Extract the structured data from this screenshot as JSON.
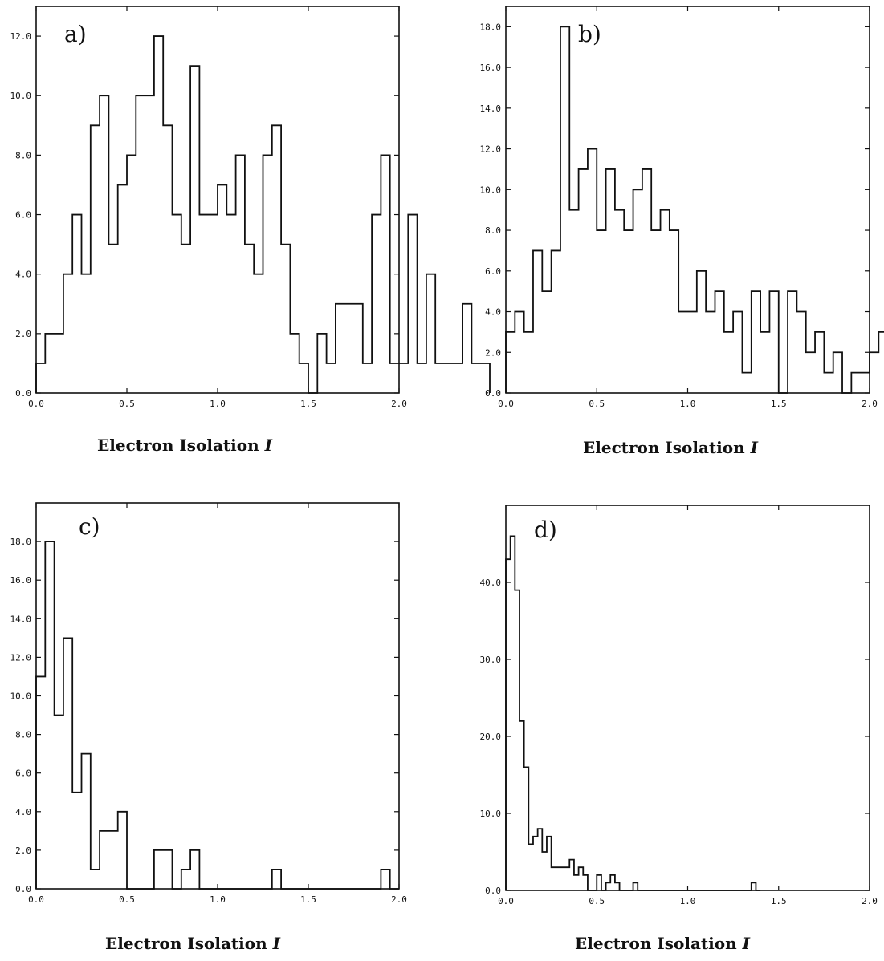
{
  "chart_data": [
    {
      "type": "histogram",
      "panel_label": "a)",
      "xlabel": "Electron Isolation",
      "xlabel_symbol": "I",
      "xlim": [
        0,
        2.0
      ],
      "ylim": [
        0,
        13.0
      ],
      "xticks": [
        "0.0",
        "0.5",
        "1.0",
        "1.5",
        "2.0"
      ],
      "yticks": [
        "0.0",
        "2.0",
        "4.0",
        "6.0",
        "8.0",
        "10.0",
        "12.0"
      ],
      "bin_width": 0.05,
      "values": [
        1,
        2,
        2,
        4,
        6,
        4,
        9,
        10,
        5,
        7,
        8,
        10,
        10,
        12,
        9,
        6,
        5,
        11,
        6,
        6,
        7,
        6,
        8,
        5,
        4,
        8,
        9,
        5,
        2,
        1,
        0,
        2,
        1,
        3,
        3,
        3,
        1,
        6,
        8,
        1,
        1,
        6,
        1,
        4,
        1,
        1,
        1,
        3,
        1,
        1
      ]
    },
    {
      "type": "histogram",
      "panel_label": "b)",
      "xlabel": "Electron Isolation",
      "xlabel_symbol": "I",
      "xlim": [
        0,
        2.0
      ],
      "ylim": [
        0,
        19.0
      ],
      "xticks": [
        "0.0",
        "0.5",
        "1.0",
        "1.5",
        "2.0"
      ],
      "yticks": [
        "0.0",
        "2.0",
        "4.0",
        "6.0",
        "8.0",
        "10.0",
        "12.0",
        "14.0",
        "16.0",
        "18.0"
      ],
      "bin_width": 0.05,
      "values": [
        3,
        4,
        3,
        7,
        5,
        7,
        18,
        9,
        11,
        12,
        8,
        11,
        9,
        8,
        10,
        11,
        8,
        9,
        8,
        4,
        4,
        6,
        4,
        5,
        3,
        4,
        1,
        5,
        3,
        5,
        0,
        5,
        4,
        2,
        3,
        1,
        2,
        0,
        1,
        1,
        2,
        3,
        0,
        2,
        1,
        2
      ]
    },
    {
      "type": "histogram",
      "panel_label": "c)",
      "xlabel": "Electron Isolation",
      "xlabel_symbol": "I",
      "xlim": [
        0,
        2.0
      ],
      "ylim": [
        0,
        20.0
      ],
      "xticks": [
        "0.0",
        "0.5",
        "1.0",
        "1.5",
        "2.0"
      ],
      "yticks": [
        "0.0",
        "2.0",
        "4.0",
        "6.0",
        "8.0",
        "10.0",
        "12.0",
        "14.0",
        "16.0",
        "18.0"
      ],
      "bin_width": 0.05,
      "values": [
        11,
        18,
        9,
        13,
        5,
        7,
        1,
        3,
        3,
        4,
        0,
        0,
        0,
        2,
        2,
        0,
        1,
        2,
        0,
        0,
        0,
        0,
        0,
        0,
        0,
        0,
        1,
        0,
        0,
        0,
        0,
        0,
        0,
        0,
        0,
        0,
        0,
        0,
        1,
        0
      ]
    },
    {
      "type": "histogram",
      "panel_label": "d)",
      "xlabel": "Electron Isolation",
      "xlabel_symbol": "I",
      "xlim": [
        0,
        2.0
      ],
      "ylim": [
        0,
        50.0
      ],
      "xticks": [
        "0.0",
        "0.5",
        "1.0",
        "1.5",
        "2.0"
      ],
      "yticks": [
        "0.0",
        "10.0",
        "20.0",
        "30.0",
        "40.0"
      ],
      "bin_width": 0.025,
      "values": [
        43,
        46,
        39,
        22,
        16,
        6,
        7,
        8,
        5,
        7,
        3,
        3,
        3,
        3,
        4,
        2,
        3,
        2,
        0,
        0,
        2,
        0,
        1,
        2,
        1,
        0,
        0,
        0,
        1,
        0,
        0,
        0,
        0,
        0,
        0,
        0,
        0,
        0,
        0,
        0,
        0,
        0,
        0,
        0,
        0,
        0,
        0,
        0,
        0,
        0,
        0,
        0,
        0,
        0,
        1,
        0
      ]
    }
  ]
}
